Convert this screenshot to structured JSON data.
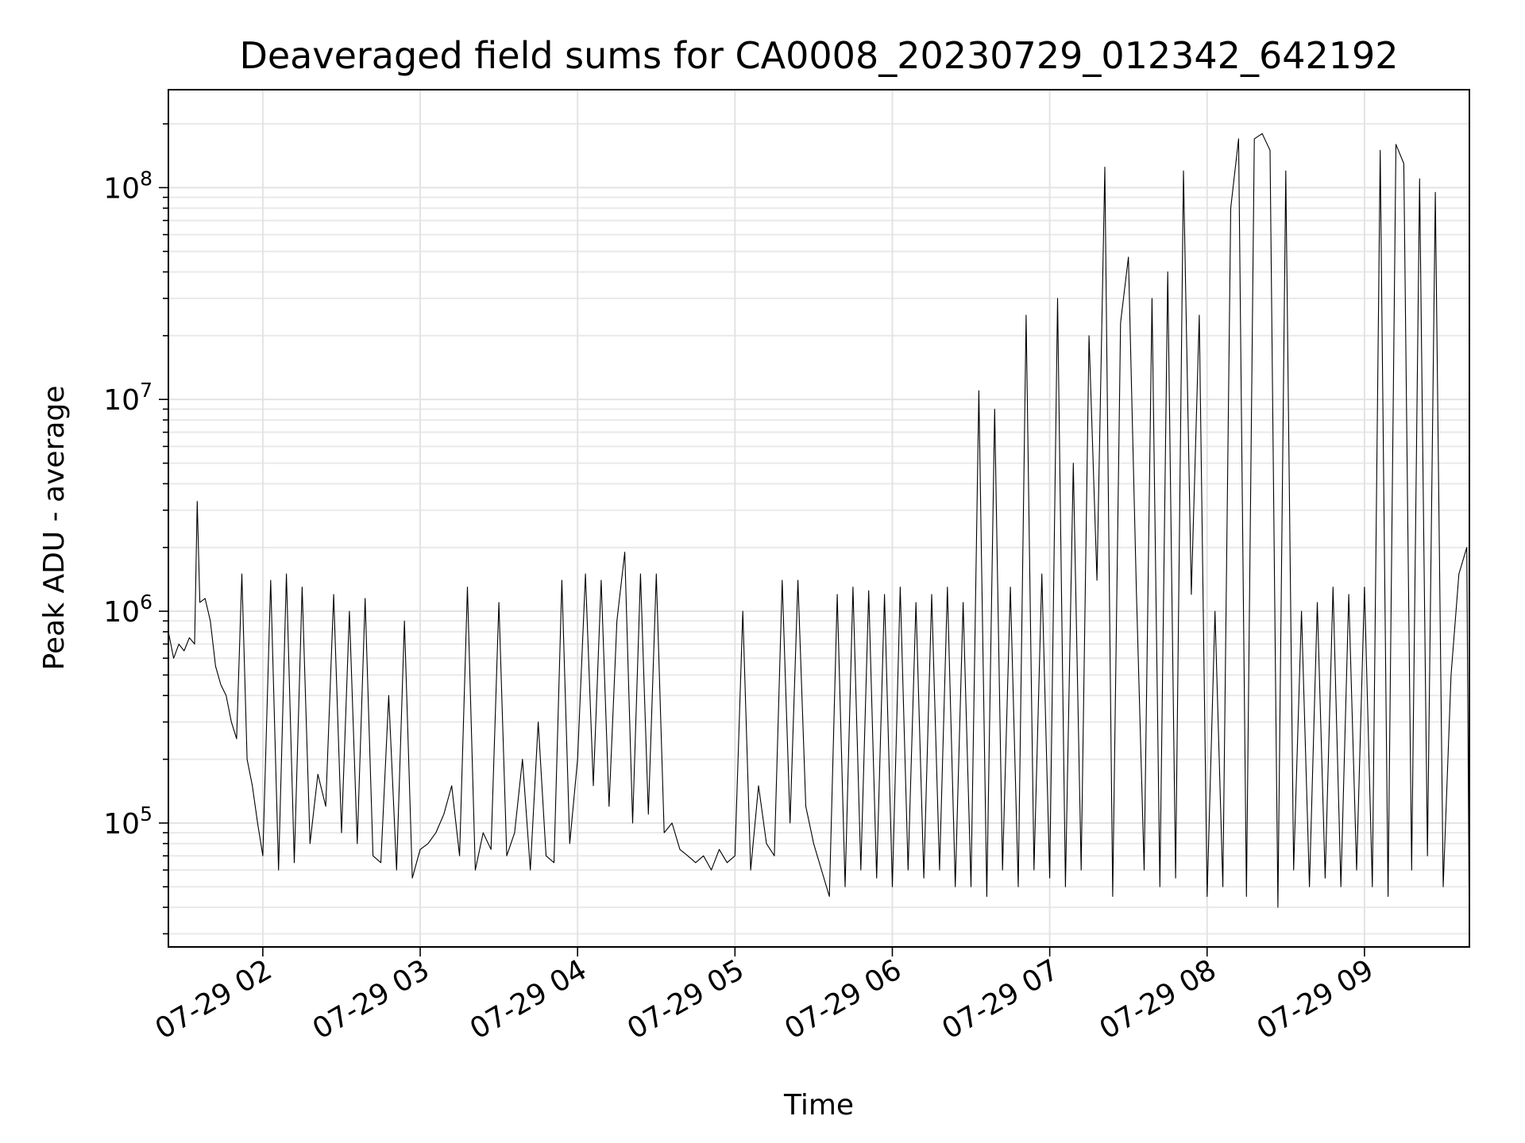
{
  "chart_data": {
    "type": "line",
    "title": "Deaveraged field sums for CA0008_20230729_012342_642192",
    "xlabel": "Time",
    "ylabel": "Peak ADU - average",
    "yscale": "log",
    "ylim": [
      26000,
      290000000
    ],
    "xlim": [
      "2023-07-29 01:24",
      "2023-07-29 09:40"
    ],
    "x_ticks": [
      "2023-07-29 02:00",
      "2023-07-29 03:00",
      "2023-07-29 04:00",
      "2023-07-29 05:00",
      "2023-07-29 06:00",
      "2023-07-29 07:00",
      "2023-07-29 08:00",
      "2023-07-29 09:00"
    ],
    "x_tick_labels": [
      "07-29 02",
      "07-29 03",
      "07-29 04",
      "07-29 05",
      "07-29 06",
      "07-29 07",
      "07-29 08",
      "07-29 09"
    ],
    "y_ticks": [
      100000,
      1000000,
      10000000,
      100000000
    ],
    "y_tick_labels": [
      {
        "base": "10",
        "exp": "5"
      },
      {
        "base": "10",
        "exp": "6"
      },
      {
        "base": "10",
        "exp": "7"
      },
      {
        "base": "10",
        "exp": "8"
      }
    ],
    "grid": true,
    "series_color": "#000000",
    "series": [
      {
        "x": [
          "2023-07-29 01:24",
          "2023-07-29 01:26",
          "2023-07-29 01:28",
          "2023-07-29 01:30",
          "2023-07-29 01:32",
          "2023-07-29 01:34",
          "2023-07-29 01:35",
          "2023-07-29 01:36",
          "2023-07-29 01:38",
          "2023-07-29 01:40",
          "2023-07-29 01:42",
          "2023-07-29 01:44",
          "2023-07-29 01:46",
          "2023-07-29 01:48",
          "2023-07-29 01:50",
          "2023-07-29 01:52",
          "2023-07-29 01:54",
          "2023-07-29 01:56",
          "2023-07-29 01:58",
          "2023-07-29 02:00",
          "2023-07-29 02:03",
          "2023-07-29 02:06",
          "2023-07-29 02:09",
          "2023-07-29 02:12",
          "2023-07-29 02:15",
          "2023-07-29 02:18",
          "2023-07-29 02:21",
          "2023-07-29 02:24",
          "2023-07-29 02:27",
          "2023-07-29 02:30",
          "2023-07-29 02:33",
          "2023-07-29 02:36",
          "2023-07-29 02:39",
          "2023-07-29 02:42",
          "2023-07-29 02:45",
          "2023-07-29 02:48",
          "2023-07-29 02:51",
          "2023-07-29 02:54",
          "2023-07-29 02:57",
          "2023-07-29 03:00",
          "2023-07-29 03:03",
          "2023-07-29 03:06",
          "2023-07-29 03:09",
          "2023-07-29 03:12",
          "2023-07-29 03:15",
          "2023-07-29 03:18",
          "2023-07-29 03:21",
          "2023-07-29 03:24",
          "2023-07-29 03:27",
          "2023-07-29 03:30",
          "2023-07-29 03:33",
          "2023-07-29 03:36",
          "2023-07-29 03:39",
          "2023-07-29 03:42",
          "2023-07-29 03:45",
          "2023-07-29 03:48",
          "2023-07-29 03:51",
          "2023-07-29 03:54",
          "2023-07-29 03:57",
          "2023-07-29 04:00",
          "2023-07-29 04:03",
          "2023-07-29 04:06",
          "2023-07-29 04:09",
          "2023-07-29 04:12",
          "2023-07-29 04:15",
          "2023-07-29 04:18",
          "2023-07-29 04:21",
          "2023-07-29 04:24",
          "2023-07-29 04:27",
          "2023-07-29 04:30",
          "2023-07-29 04:33",
          "2023-07-29 04:36",
          "2023-07-29 04:39",
          "2023-07-29 04:42",
          "2023-07-29 04:45",
          "2023-07-29 04:48",
          "2023-07-29 04:51",
          "2023-07-29 04:54",
          "2023-07-29 04:57",
          "2023-07-29 05:00",
          "2023-07-29 05:03",
          "2023-07-29 05:06",
          "2023-07-29 05:09",
          "2023-07-29 05:12",
          "2023-07-29 05:15",
          "2023-07-29 05:18",
          "2023-07-29 05:21",
          "2023-07-29 05:24",
          "2023-07-29 05:27",
          "2023-07-29 05:30",
          "2023-07-29 05:33",
          "2023-07-29 05:36",
          "2023-07-29 05:39",
          "2023-07-29 05:42",
          "2023-07-29 05:45",
          "2023-07-29 05:48",
          "2023-07-29 05:51",
          "2023-07-29 05:54",
          "2023-07-29 05:57",
          "2023-07-29 06:00",
          "2023-07-29 06:03",
          "2023-07-29 06:06",
          "2023-07-29 06:09",
          "2023-07-29 06:12",
          "2023-07-29 06:15",
          "2023-07-29 06:18",
          "2023-07-29 06:21",
          "2023-07-29 06:24",
          "2023-07-29 06:27",
          "2023-07-29 06:30",
          "2023-07-29 06:33",
          "2023-07-29 06:36",
          "2023-07-29 06:39",
          "2023-07-29 06:42",
          "2023-07-29 06:45",
          "2023-07-29 06:48",
          "2023-07-29 06:51",
          "2023-07-29 06:54",
          "2023-07-29 06:57",
          "2023-07-29 07:00",
          "2023-07-29 07:03",
          "2023-07-29 07:06",
          "2023-07-29 07:09",
          "2023-07-29 07:12",
          "2023-07-29 07:15",
          "2023-07-29 07:18",
          "2023-07-29 07:21",
          "2023-07-29 07:24",
          "2023-07-29 07:27",
          "2023-07-29 07:30",
          "2023-07-29 07:33",
          "2023-07-29 07:36",
          "2023-07-29 07:39",
          "2023-07-29 07:42",
          "2023-07-29 07:45",
          "2023-07-29 07:48",
          "2023-07-29 07:51",
          "2023-07-29 07:54",
          "2023-07-29 07:57",
          "2023-07-29 08:00",
          "2023-07-29 08:03",
          "2023-07-29 08:06",
          "2023-07-29 08:09",
          "2023-07-29 08:12",
          "2023-07-29 08:15",
          "2023-07-29 08:18",
          "2023-07-29 08:21",
          "2023-07-29 08:24",
          "2023-07-29 08:27",
          "2023-07-29 08:30",
          "2023-07-29 08:33",
          "2023-07-29 08:36",
          "2023-07-29 08:39",
          "2023-07-29 08:42",
          "2023-07-29 08:45",
          "2023-07-29 08:48",
          "2023-07-29 08:51",
          "2023-07-29 08:54",
          "2023-07-29 08:57",
          "2023-07-29 09:00",
          "2023-07-29 09:03",
          "2023-07-29 09:06",
          "2023-07-29 09:09",
          "2023-07-29 09:12",
          "2023-07-29 09:15",
          "2023-07-29 09:18",
          "2023-07-29 09:21",
          "2023-07-29 09:24",
          "2023-07-29 09:27",
          "2023-07-29 09:30",
          "2023-07-29 09:33",
          "2023-07-29 09:36",
          "2023-07-29 09:39",
          "2023-07-29 09:40"
        ],
        "y": [
          800000,
          600000,
          700000,
          650000,
          750000,
          700000,
          3300000,
          1100000,
          1150000,
          900000,
          550000,
          450000,
          400000,
          300000,
          250000,
          1500000,
          200000,
          150000,
          100000,
          70000,
          1400000,
          60000,
          1500000,
          65000,
          1300000,
          80000,
          170000,
          120000,
          1200000,
          90000,
          1000000,
          80000,
          1150000,
          70000,
          65000,
          400000,
          60000,
          900000,
          55000,
          75000,
          80000,
          90000,
          110000,
          150000,
          70000,
          1300000,
          60000,
          90000,
          75000,
          1100000,
          70000,
          90000,
          200000,
          60000,
          300000,
          70000,
          65000,
          1400000,
          80000,
          200000,
          1500000,
          150000,
          1400000,
          120000,
          900000,
          1900000,
          100000,
          1500000,
          110000,
          1500000,
          90000,
          100000,
          75000,
          70000,
          65000,
          70000,
          60000,
          75000,
          65000,
          70000,
          1000000,
          60000,
          150000,
          80000,
          70000,
          1400000,
          100000,
          1400000,
          120000,
          80000,
          60000,
          45000,
          1200000,
          50000,
          1300000,
          60000,
          1250000,
          55000,
          1200000,
          50000,
          1300000,
          60000,
          1100000,
          55000,
          1200000,
          60000,
          1300000,
          50000,
          1100000,
          50000,
          11000000,
          45000,
          9000000,
          60000,
          1300000,
          50000,
          25000000,
          60000,
          1500000,
          55000,
          30000000,
          50000,
          5000000,
          60000,
          20000000,
          1400000,
          125000000,
          45000,
          23000000,
          47000000,
          1300000,
          60000,
          30000000,
          50000,
          40000000,
          55000,
          120000000,
          1200000,
          25000000,
          45000,
          1000000,
          50000,
          80000000,
          170000000,
          45000,
          170000000,
          180000000,
          150000000,
          40000,
          120000000,
          60000,
          1000000,
          50000,
          1100000,
          55000,
          1300000,
          50000,
          1200000,
          60000,
          1300000,
          50000,
          150000000,
          45000,
          160000000,
          130000000,
          60000,
          110000000,
          70000,
          95000000,
          50000,
          500000,
          1500000,
          2000000,
          20000
        ]
      }
    ]
  }
}
